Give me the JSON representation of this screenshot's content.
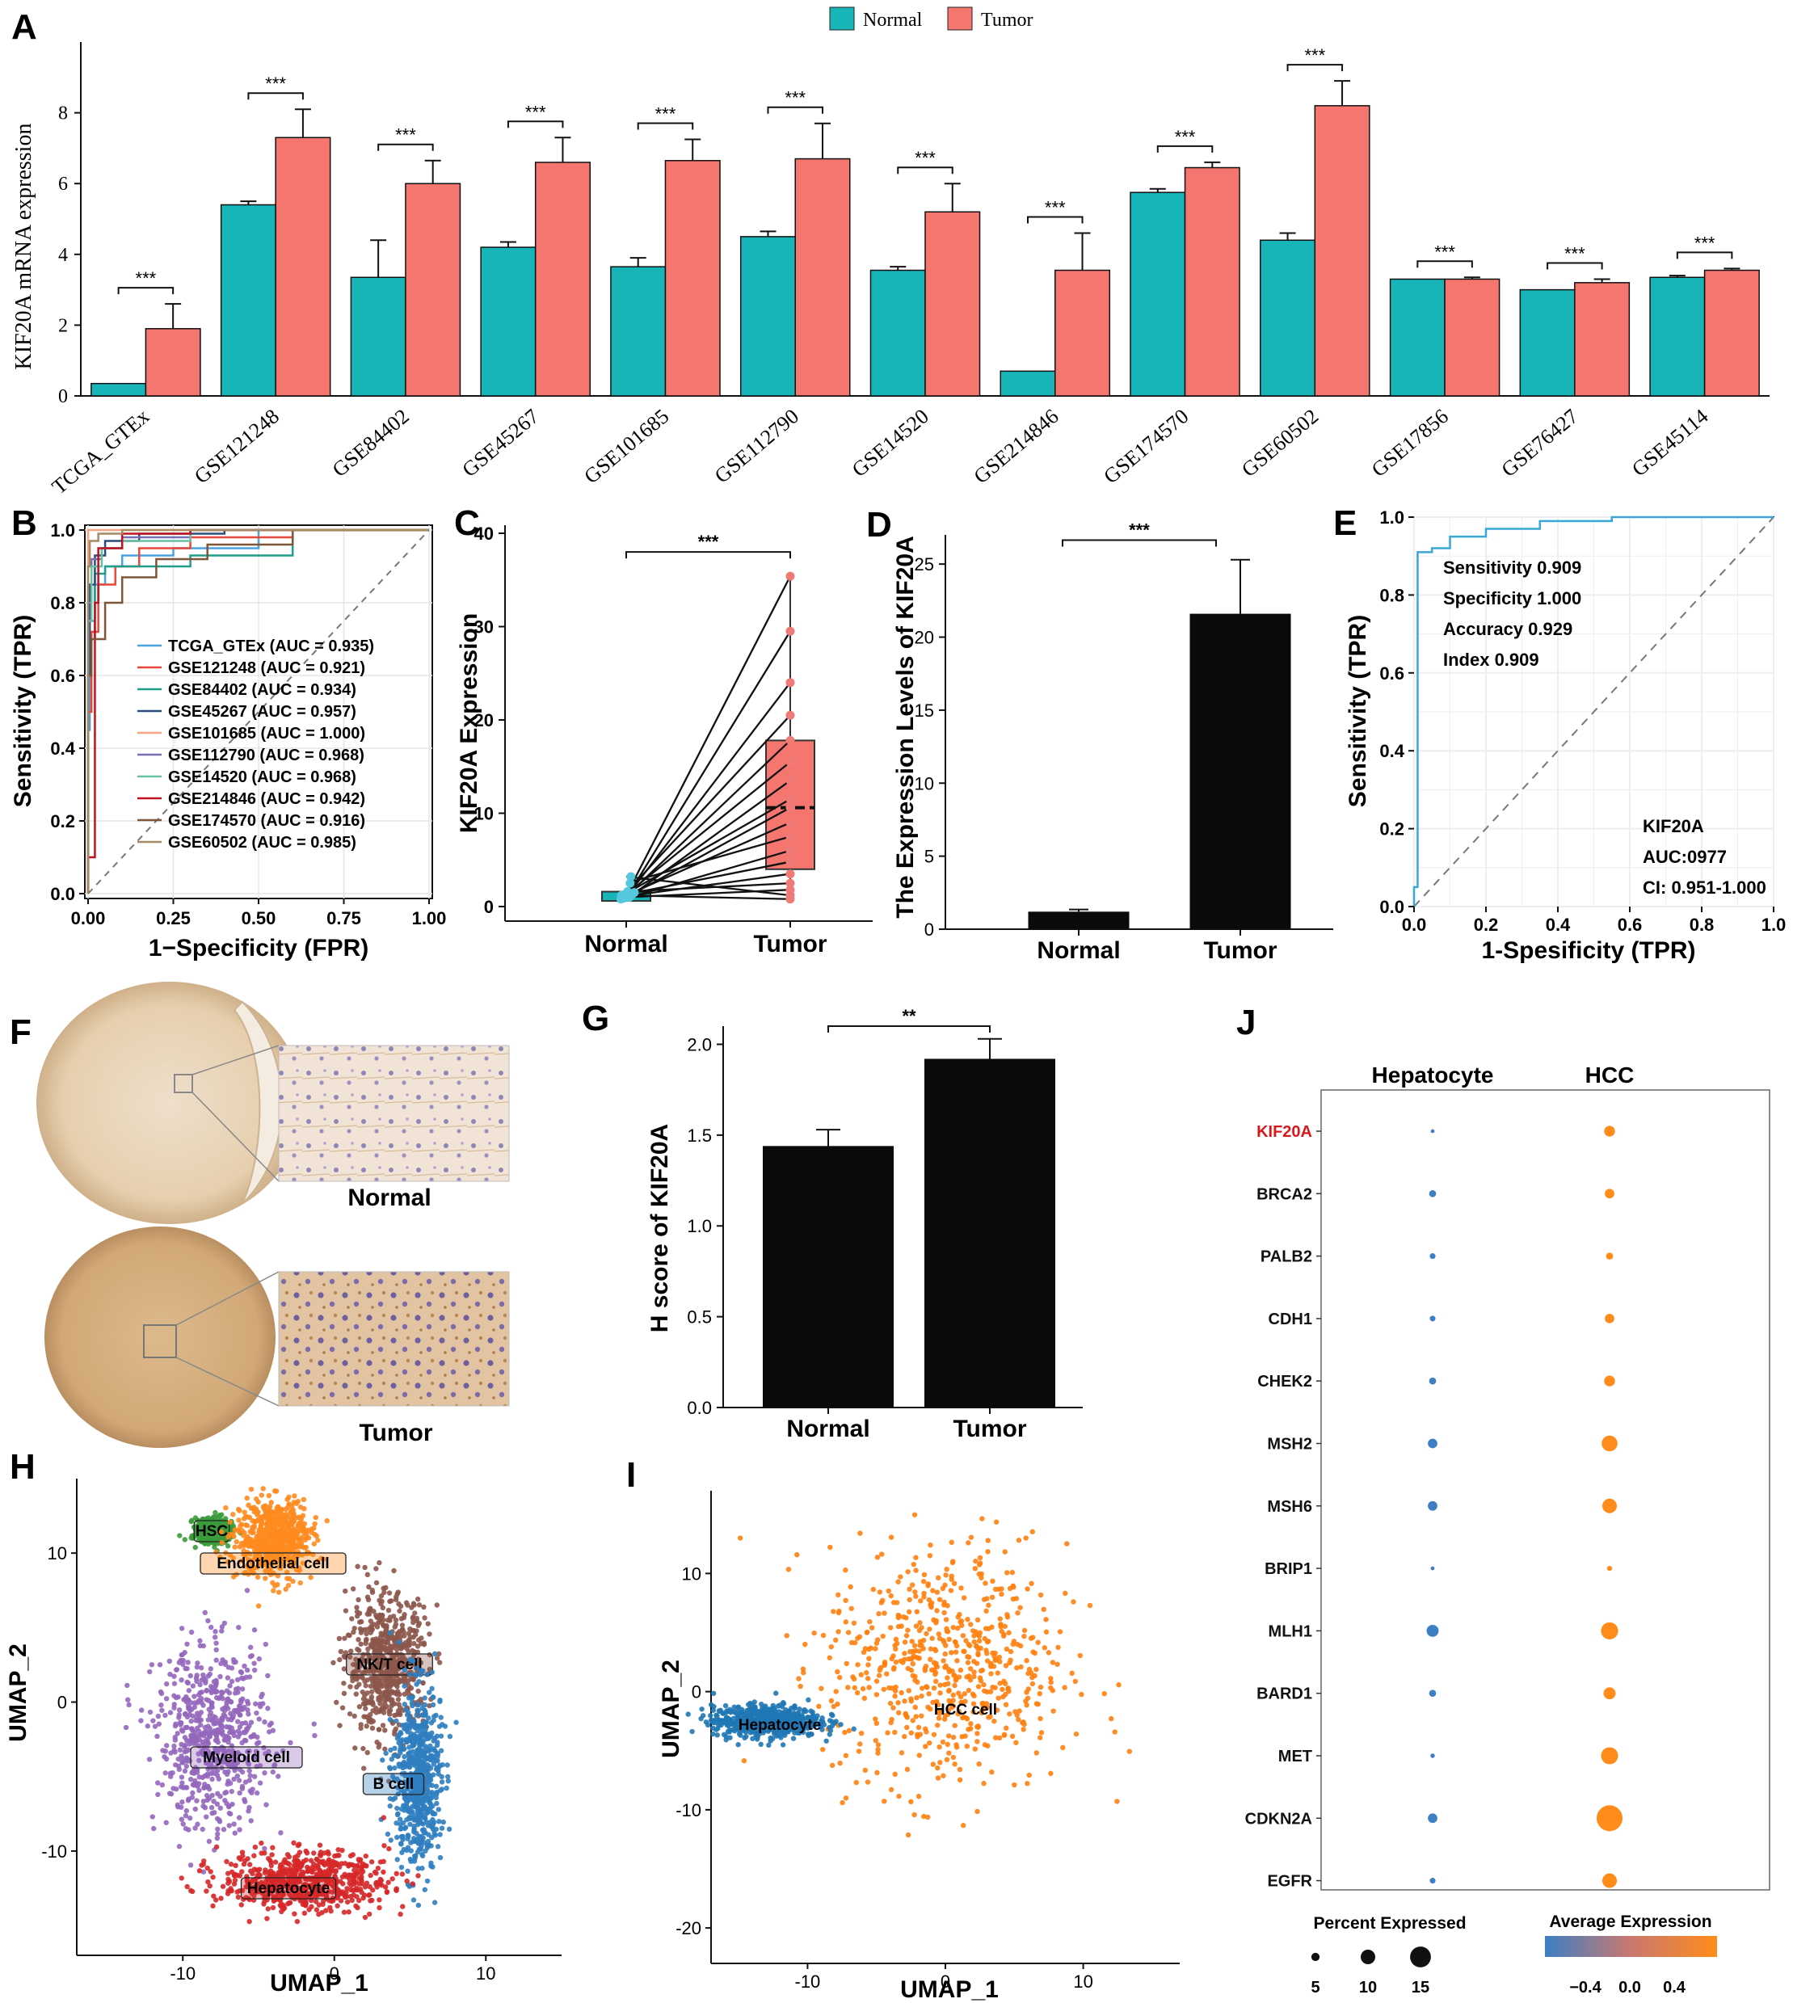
{
  "panel_labels": [
    "A",
    "B",
    "C",
    "D",
    "E",
    "F",
    "G",
    "H",
    "I",
    "J"
  ],
  "colors": {
    "normal": "#18B5B8",
    "tumor": "#F5766F",
    "bar_black": "#0a0a0a",
    "roc_e": "#3aa7d6",
    "hsc": "#3a9b3a",
    "endothelial": "#ff8a1e",
    "nkt": "#8c564b",
    "bcell": "#2f7ec0",
    "myeloid": "#9467bd",
    "hepatocyte": "#d62728",
    "hcc": "#ff7f0e",
    "j_low": "#3d7fc4",
    "j_high": "#ff8c1a"
  },
  "chart_data": [
    {
      "id": "A",
      "type": "bar",
      "ylabel": "KIF20A mRNA expression",
      "ylim": [
        0,
        10
      ],
      "yticks": [
        0,
        2,
        4,
        6,
        8
      ],
      "legend": [
        "Normal",
        "Tumor"
      ],
      "legend_position": "top",
      "categories": [
        "TCGA_GTEx",
        "GSE121248",
        "GSE84402",
        "GSE45267",
        "GSE101685",
        "GSE112790",
        "GSE14520",
        "GSE214846",
        "GSE174570",
        "GSE60502",
        "GSE17856",
        "GSE76427",
        "GSE45114"
      ],
      "series": [
        {
          "name": "Normal",
          "values": [
            0.35,
            5.4,
            3.35,
            4.2,
            3.65,
            4.5,
            3.55,
            0.7,
            5.75,
            4.4,
            3.3,
            3.0,
            3.35
          ],
          "err": [
            0.0,
            0.1,
            1.05,
            0.15,
            0.25,
            0.15,
            0.1,
            0.0,
            0.1,
            0.2,
            0.0,
            0.0,
            0.05
          ]
        },
        {
          "name": "Tumor",
          "values": [
            1.9,
            7.3,
            6.0,
            6.6,
            6.65,
            6.7,
            5.2,
            3.55,
            6.45,
            8.2,
            3.3,
            3.2,
            3.55
          ],
          "err": [
            0.7,
            0.8,
            0.65,
            0.7,
            0.6,
            1.0,
            0.8,
            1.05,
            0.15,
            0.7,
            0.05,
            0.1,
            0.05
          ]
        }
      ],
      "significance": [
        "***",
        "***",
        "***",
        "***",
        "***",
        "***",
        "***",
        "***",
        "***",
        "***",
        "***",
        "***",
        "***"
      ]
    },
    {
      "id": "B",
      "type": "line",
      "xlabel": "1−Specificity (FPR)",
      "ylabel": "Sensitivity (TPR)",
      "xlim": [
        0,
        1
      ],
      "ylim": [
        0,
        1
      ],
      "xticks": [
        "0.00",
        "0.25",
        "0.50",
        "0.75",
        "1.00"
      ],
      "yticks": [
        "0.0",
        "0.2",
        "0.4",
        "0.6",
        "0.8",
        "1.0"
      ],
      "legend_position": "right",
      "series": [
        {
          "name": "TCGA_GTEx (AUC = 0.935)",
          "color": "#4aa3df",
          "points": [
            [
              0,
              0
            ],
            [
              0.005,
              0.45
            ],
            [
              0.02,
              0.75
            ],
            [
              0.05,
              0.85
            ],
            [
              0.1,
              0.9
            ],
            [
              0.25,
              0.93
            ],
            [
              0.5,
              0.95
            ],
            [
              1,
              1
            ]
          ]
        },
        {
          "name": "GSE121248 (AUC = 0.921)",
          "color": "#e8483b",
          "points": [
            [
              0,
              0
            ],
            [
              0.01,
              0.5
            ],
            [
              0.03,
              0.72
            ],
            [
              0.08,
              0.85
            ],
            [
              0.15,
              0.9
            ],
            [
              0.3,
              0.95
            ],
            [
              0.6,
              0.98
            ],
            [
              1,
              1
            ]
          ]
        },
        {
          "name": "GSE84402 (AUC = 0.934)",
          "color": "#1f9e89",
          "points": [
            [
              0,
              0
            ],
            [
              0.02,
              0.7
            ],
            [
              0.05,
              0.88
            ],
            [
              0.1,
              0.9
            ],
            [
              0.3,
              0.9
            ],
            [
              0.6,
              0.93
            ],
            [
              0.8,
              1
            ],
            [
              1,
              1
            ]
          ]
        },
        {
          "name": "GSE45267 (AUC = 0.957)",
          "color": "#2b4c7e",
          "points": [
            [
              0,
              0
            ],
            [
              0.005,
              0.6
            ],
            [
              0.02,
              0.85
            ],
            [
              0.05,
              0.93
            ],
            [
              0.15,
              0.97
            ],
            [
              0.4,
              0.99
            ],
            [
              1,
              1
            ]
          ]
        },
        {
          "name": "GSE101685 (AUC = 1.000)",
          "color": "#f4a582",
          "points": [
            [
              0,
              0
            ],
            [
              0,
              1
            ],
            [
              1,
              1
            ]
          ]
        },
        {
          "name": "GSE112790 (AUC = 0.968)",
          "color": "#7570b3",
          "points": [
            [
              0,
              0
            ],
            [
              0.01,
              0.8
            ],
            [
              0.04,
              0.92
            ],
            [
              0.1,
              0.95
            ],
            [
              0.3,
              0.98
            ],
            [
              1,
              1
            ]
          ]
        },
        {
          "name": "GSE14520 (AUC = 0.968)",
          "color": "#66c2a5",
          "points": [
            [
              0,
              0
            ],
            [
              0.01,
              0.75
            ],
            [
              0.04,
              0.9
            ],
            [
              0.1,
              0.95
            ],
            [
              0.3,
              0.97
            ],
            [
              1,
              1
            ]
          ]
        },
        {
          "name": "GSE214846 (AUC = 0.942)",
          "color": "#c1121f",
          "points": [
            [
              0,
              0
            ],
            [
              0.02,
              0.1
            ],
            [
              0.03,
              0.8
            ],
            [
              0.1,
              0.95
            ],
            [
              0.3,
              0.99
            ],
            [
              0.6,
              1
            ],
            [
              1,
              1
            ]
          ]
        },
        {
          "name": "GSE174570 (AUC = 0.916)",
          "color": "#7f5539",
          "points": [
            [
              0,
              0
            ],
            [
              0.01,
              0.6
            ],
            [
              0.05,
              0.7
            ],
            [
              0.1,
              0.8
            ],
            [
              0.2,
              0.87
            ],
            [
              0.35,
              0.92
            ],
            [
              0.6,
              0.96
            ],
            [
              1,
              1
            ]
          ]
        },
        {
          "name": "GSE60502 (AUC = 0.985)",
          "color": "#a68a64",
          "points": [
            [
              0,
              0
            ],
            [
              0.005,
              0.9
            ],
            [
              0.03,
              0.97
            ],
            [
              0.1,
              0.99
            ],
            [
              1,
              1
            ]
          ]
        }
      ]
    },
    {
      "id": "C",
      "type": "scatter",
      "ylabel": "KIF20A Expression",
      "categories": [
        "Normal",
        "Tumor"
      ],
      "ylim": [
        0,
        40
      ],
      "yticks": [
        0,
        10,
        20,
        30,
        40
      ],
      "significance": "***",
      "pairs": [
        [
          1.2,
          35.4
        ],
        [
          0.9,
          29.5
        ],
        [
          1.0,
          24.0
        ],
        [
          1.5,
          20.5
        ],
        [
          1.1,
          17.8
        ],
        [
          1.3,
          15.5
        ],
        [
          0.8,
          13.5
        ],
        [
          1.4,
          11.5
        ],
        [
          1.0,
          10.6
        ],
        [
          1.2,
          9.0
        ],
        [
          2.5,
          7.5
        ],
        [
          0.9,
          6.0
        ],
        [
          1.3,
          4.8
        ],
        [
          1.1,
          3.5
        ],
        [
          1.6,
          2.5
        ],
        [
          1.0,
          1.8
        ],
        [
          1.2,
          0.8
        ],
        [
          3.2,
          1.2
        ]
      ],
      "box_tumor": {
        "q1": 4.0,
        "median": 10.6,
        "q3": 17.8,
        "min": 0.8,
        "max": 35.4
      }
    },
    {
      "id": "D",
      "type": "bar",
      "ylabel": "The Expression Levels of KIF20A",
      "categories": [
        "Normal",
        "Tumor"
      ],
      "values": [
        1.2,
        21.6
      ],
      "err": [
        0.15,
        3.7
      ],
      "ylim": [
        0,
        27
      ],
      "yticks": [
        0,
        5,
        10,
        15,
        20,
        25
      ],
      "significance": "***"
    },
    {
      "id": "E",
      "type": "line",
      "xlabel": "1-Spesificity (TPR)",
      "ylabel": "Sensitivity (TPR)",
      "xlim": [
        0,
        1
      ],
      "ylim": [
        0,
        1
      ],
      "xticks": [
        "0.0",
        "0.2",
        "0.4",
        "0.6",
        "0.8",
        "1.0"
      ],
      "yticks": [
        "0.0",
        "0.2",
        "0.4",
        "0.6",
        "0.8",
        "1.0"
      ],
      "points": [
        [
          0,
          0
        ],
        [
          0,
          0.05
        ],
        [
          0.01,
          0.05
        ],
        [
          0.01,
          0.91
        ],
        [
          0.05,
          0.91
        ],
        [
          0.05,
          0.92
        ],
        [
          0.1,
          0.92
        ],
        [
          0.1,
          0.95
        ],
        [
          0.2,
          0.95
        ],
        [
          0.2,
          0.97
        ],
        [
          0.35,
          0.97
        ],
        [
          0.35,
          0.99
        ],
        [
          0.55,
          0.99
        ],
        [
          0.55,
          1.0
        ],
        [
          1,
          1
        ]
      ],
      "stats": [
        "Sensitivity 0.909",
        "Specificity 1.000",
        "Accuracy 0.929",
        "Index 0.909"
      ],
      "gene": "KIF20A",
      "auc": "AUC:0977",
      "ci": "CI: 0.951-1.000"
    },
    {
      "id": "G",
      "type": "bar",
      "ylabel": "H score of KIF20A",
      "categories": [
        "Normal",
        "Tumor"
      ],
      "values": [
        1.44,
        1.92
      ],
      "err": [
        0.09,
        0.11
      ],
      "ylim": [
        0,
        2.1
      ],
      "yticks": [
        "0.0",
        "0.5",
        "1.0",
        "1.5",
        "2.0"
      ],
      "significance": "**"
    },
    {
      "id": "H",
      "type": "scatter",
      "xlabel": "UMAP_1",
      "ylabel": "UMAP_2",
      "xlim": [
        -17,
        15
      ],
      "ylim": [
        -17,
        15
      ],
      "xticks": [
        -10,
        0,
        10
      ],
      "yticks": [
        -10,
        0,
        10
      ],
      "clusters": [
        {
          "name": "HSC",
          "color": "#3a9b3a",
          "center": [
            -8,
            11.5
          ],
          "spread": [
            1.0,
            0.7
          ]
        },
        {
          "name": "Endothelial cell",
          "color": "#ff8a1e",
          "center": [
            -4,
            11.0
          ],
          "spread": [
            2.2,
            2.2
          ]
        },
        {
          "name": "NK/T cell",
          "color": "#8c564b",
          "center": [
            3.5,
            2.5
          ],
          "spread": [
            2.4,
            4.2
          ]
        },
        {
          "name": "Myeloid cell",
          "color": "#9467bd",
          "center": [
            -8,
            -2.5
          ],
          "spread": [
            3.4,
            5.5
          ]
        },
        {
          "name": "B cell",
          "color": "#2f7ec0",
          "center": [
            5.5,
            -5
          ],
          "spread": [
            1.4,
            5.5
          ]
        },
        {
          "name": "Hepatocyte",
          "color": "#d62728",
          "center": [
            -2,
            -12
          ],
          "spread": [
            5.0,
            1.8
          ]
        }
      ]
    },
    {
      "id": "I",
      "type": "scatter",
      "xlabel": "UMAP_1",
      "ylabel": "UMAP_2",
      "xlim": [
        -17,
        17
      ],
      "ylim": [
        -23,
        17
      ],
      "xticks": [
        -10,
        0,
        10
      ],
      "yticks": [
        -20,
        -10,
        0,
        10
      ],
      "clusters": [
        {
          "name": "HCC cell",
          "color": "#ff7f0e",
          "center": [
            0,
            2
          ],
          "spread": [
            8.0,
            9.5
          ]
        },
        {
          "name": "Hepatocyte",
          "color": "#1f77b4",
          "center": [
            -13,
            -2.5
          ],
          "spread": [
            3.5,
            1.2
          ]
        }
      ]
    },
    {
      "id": "J",
      "type": "scatter",
      "categories": [
        "Hepatocyte",
        "HCC"
      ],
      "genes": [
        "KIF20A",
        "BRCA2",
        "PALB2",
        "CDH1",
        "CHEK2",
        "MSH2",
        "MSH6",
        "BRIP1",
        "MLH1",
        "BARD1",
        "MET",
        "CDKN2A",
        "EGFR"
      ],
      "hepatocyte_pct": [
        1.5,
        4,
        3,
        3,
        4,
        6,
        6,
        1.5,
        8,
        4,
        2,
        6,
        3
      ],
      "hcc_pct": [
        7,
        6,
        4,
        6,
        7,
        11,
        10,
        2.5,
        12,
        8,
        12,
        19,
        10
      ],
      "hepatocyte_avg": [
        -0.4,
        -0.4,
        -0.4,
        -0.4,
        -0.4,
        -0.4,
        -0.4,
        -0.4,
        -0.4,
        -0.4,
        -0.4,
        -0.4,
        -0.4
      ],
      "hcc_avg": [
        0.4,
        0.4,
        0.4,
        0.4,
        0.4,
        0.4,
        0.4,
        0.4,
        0.4,
        0.4,
        0.4,
        0.4,
        0.4
      ],
      "highlight_gene": "KIF20A",
      "size_legend_title": "Percent Expressed",
      "size_legend_values": [
        5,
        10,
        15
      ],
      "color_legend_title": "Average Expression",
      "color_legend_ticks": [
        "−0.4",
        "0.0",
        "0.4"
      ]
    }
  ],
  "panel_f": {
    "normal_label": "Normal",
    "tumor_label": "Tumor"
  }
}
